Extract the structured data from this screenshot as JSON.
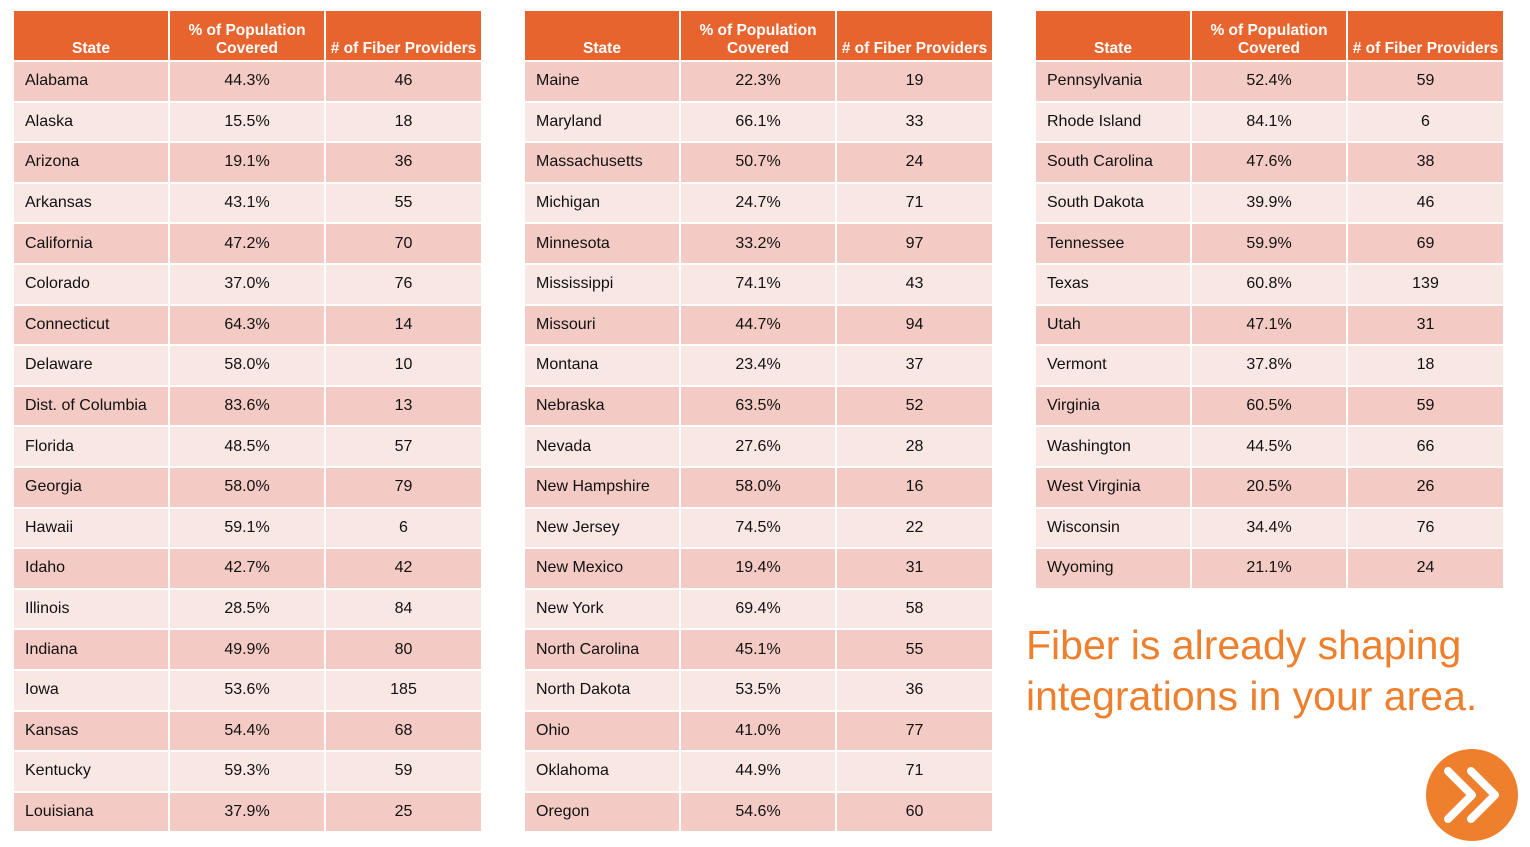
{
  "headers": {
    "state": "State",
    "coverage": "% of Population Covered",
    "providers": "# of Fiber Providers"
  },
  "tables": [
    {
      "rows": [
        {
          "state": "Alabama",
          "coverage": "44.3%",
          "providers": "46"
        },
        {
          "state": "Alaska",
          "coverage": "15.5%",
          "providers": "18"
        },
        {
          "state": "Arizona",
          "coverage": "19.1%",
          "providers": "36"
        },
        {
          "state": "Arkansas",
          "coverage": "43.1%",
          "providers": "55"
        },
        {
          "state": "California",
          "coverage": "47.2%",
          "providers": "70"
        },
        {
          "state": "Colorado",
          "coverage": "37.0%",
          "providers": "76"
        },
        {
          "state": "Connecticut",
          "coverage": "64.3%",
          "providers": "14"
        },
        {
          "state": "Delaware",
          "coverage": "58.0%",
          "providers": "10"
        },
        {
          "state": "Dist. of Columbia",
          "coverage": "83.6%",
          "providers": "13"
        },
        {
          "state": "Florida",
          "coverage": "48.5%",
          "providers": "57"
        },
        {
          "state": "Georgia",
          "coverage": "58.0%",
          "providers": "79"
        },
        {
          "state": "Hawaii",
          "coverage": "59.1%",
          "providers": "6"
        },
        {
          "state": "Idaho",
          "coverage": "42.7%",
          "providers": "42"
        },
        {
          "state": "Illinois",
          "coverage": "28.5%",
          "providers": "84"
        },
        {
          "state": "Indiana",
          "coverage": "49.9%",
          "providers": "80"
        },
        {
          "state": "Iowa",
          "coverage": "53.6%",
          "providers": "185"
        },
        {
          "state": "Kansas",
          "coverage": "54.4%",
          "providers": "68"
        },
        {
          "state": "Kentucky",
          "coverage": "59.3%",
          "providers": "59"
        },
        {
          "state": "Louisiana",
          "coverage": "37.9%",
          "providers": "25"
        }
      ]
    },
    {
      "rows": [
        {
          "state": "Maine",
          "coverage": "22.3%",
          "providers": "19"
        },
        {
          "state": "Maryland",
          "coverage": "66.1%",
          "providers": "33"
        },
        {
          "state": "Massachusetts",
          "coverage": "50.7%",
          "providers": "24"
        },
        {
          "state": "Michigan",
          "coverage": "24.7%",
          "providers": "71"
        },
        {
          "state": "Minnesota",
          "coverage": "33.2%",
          "providers": "97"
        },
        {
          "state": "Mississippi",
          "coverage": "74.1%",
          "providers": "43"
        },
        {
          "state": "Missouri",
          "coverage": "44.7%",
          "providers": "94"
        },
        {
          "state": "Montana",
          "coverage": "23.4%",
          "providers": "37"
        },
        {
          "state": "Nebraska",
          "coverage": "63.5%",
          "providers": "52"
        },
        {
          "state": "Nevada",
          "coverage": "27.6%",
          "providers": "28"
        },
        {
          "state": "New Hampshire",
          "coverage": "58.0%",
          "providers": "16"
        },
        {
          "state": "New Jersey",
          "coverage": "74.5%",
          "providers": "22"
        },
        {
          "state": "New Mexico",
          "coverage": "19.4%",
          "providers": "31"
        },
        {
          "state": "New York",
          "coverage": "69.4%",
          "providers": "58"
        },
        {
          "state": "North Carolina",
          "coverage": "45.1%",
          "providers": "55"
        },
        {
          "state": "North Dakota",
          "coverage": "53.5%",
          "providers": "36"
        },
        {
          "state": "Ohio",
          "coverage": "41.0%",
          "providers": "77"
        },
        {
          "state": "Oklahoma",
          "coverage": "44.9%",
          "providers": "71"
        },
        {
          "state": "Oregon",
          "coverage": "54.6%",
          "providers": "60"
        }
      ]
    },
    {
      "rows": [
        {
          "state": "Pennsylvania",
          "coverage": "52.4%",
          "providers": "59"
        },
        {
          "state": "Rhode Island",
          "coverage": "84.1%",
          "providers": "6"
        },
        {
          "state": "South Carolina",
          "coverage": "47.6%",
          "providers": "38"
        },
        {
          "state": "South Dakota",
          "coverage": "39.9%",
          "providers": "46"
        },
        {
          "state": "Tennessee",
          "coverage": "59.9%",
          "providers": "69"
        },
        {
          "state": "Texas",
          "coverage": "60.8%",
          "providers": "139"
        },
        {
          "state": "Utah",
          "coverage": "47.1%",
          "providers": "31"
        },
        {
          "state": "Vermont",
          "coverage": "37.8%",
          "providers": "18"
        },
        {
          "state": "Virginia",
          "coverage": "60.5%",
          "providers": "59"
        },
        {
          "state": "Washington",
          "coverage": "44.5%",
          "providers": "66"
        },
        {
          "state": "West Virginia",
          "coverage": "20.5%",
          "providers": "26"
        },
        {
          "state": "Wisconsin",
          "coverage": "34.4%",
          "providers": "76"
        },
        {
          "state": "Wyoming",
          "coverage": "21.1%",
          "providers": "24"
        }
      ]
    }
  ],
  "tagline": "Fiber is already shaping integrations in your area.",
  "next_button": {
    "icon": "fast-forward-icon",
    "color": "#ee7f2d"
  },
  "colors": {
    "header_bg": "#e8642f",
    "row_dark": "#f3cbc4",
    "row_light": "#f9e7e4",
    "tagline": "#ee7f2d"
  }
}
